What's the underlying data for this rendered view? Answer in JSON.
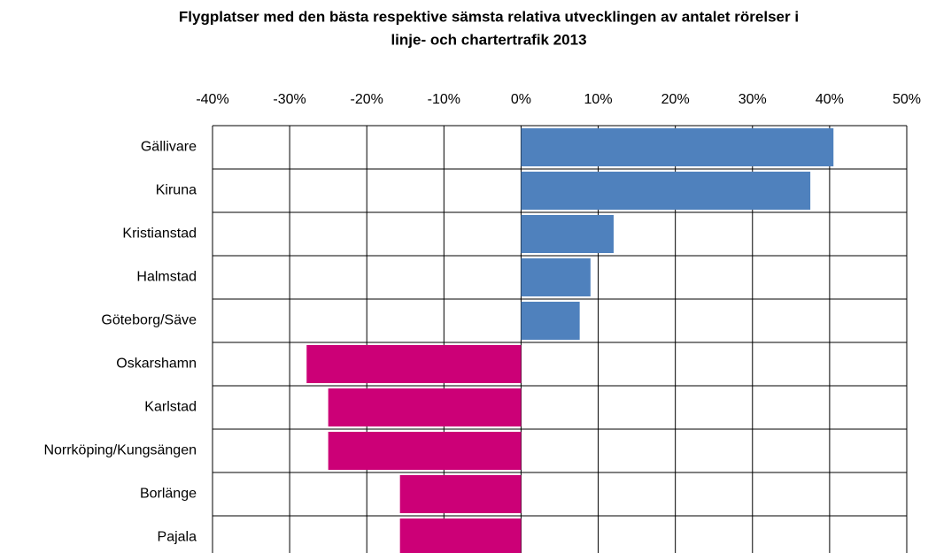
{
  "chart_data": {
    "type": "hbar",
    "title": [
      "Flygplatser med den bästa respektive sämsta relativa utvecklingen av antalet rörelser i",
      "linje- och chartertrafik 2013"
    ],
    "categories": [
      "Gällivare",
      "Kiruna",
      "Kristianstad",
      "Halmstad",
      "Göteborg/Säve",
      "Oskarshamn",
      "Karlstad",
      "Norrköping/Kungsängen",
      "Borlänge",
      "Pajala"
    ],
    "values": [
      40.5,
      37.5,
      12.0,
      9.0,
      7.6,
      -27.8,
      -25.0,
      -25.0,
      -15.7,
      -15.7
    ],
    "positive_color": "#4f81bd",
    "negative_color": "#cc0077",
    "xlim": [
      -40,
      50
    ],
    "xticks": [
      {
        "value": -40,
        "label": "-40%"
      },
      {
        "value": -30,
        "label": "-30%"
      },
      {
        "value": -20,
        "label": "-20%"
      },
      {
        "value": -10,
        "label": "-10%"
      },
      {
        "value": 0,
        "label": "0%"
      },
      {
        "value": 10,
        "label": "10%"
      },
      {
        "value": 20,
        "label": "20%"
      },
      {
        "value": 30,
        "label": "30%"
      },
      {
        "value": 40,
        "label": "40%"
      },
      {
        "value": 50,
        "label": "50%"
      }
    ],
    "grid": true
  }
}
